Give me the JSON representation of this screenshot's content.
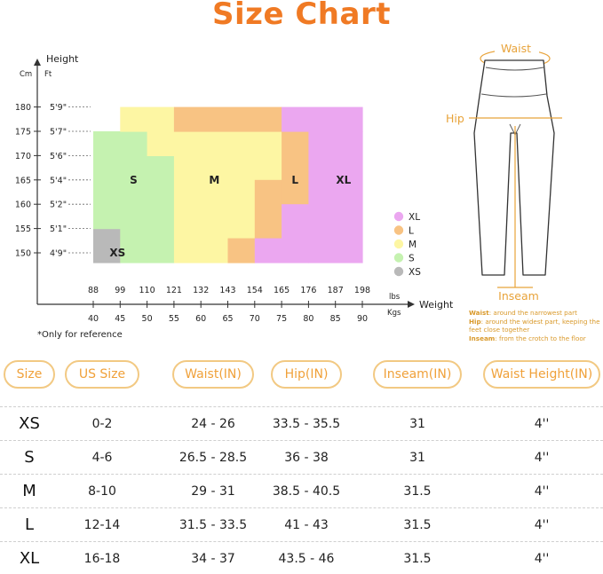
{
  "title": "Size Chart",
  "chart_data": {
    "type": "heatmap",
    "y_axis": {
      "title": "Height",
      "units": [
        "Cm",
        "Ft"
      ],
      "ticks_cm": [
        180,
        175,
        170,
        165,
        160,
        155,
        150
      ],
      "ticks_ft": [
        "5'9\"",
        "5'7\"",
        "5'6\"",
        "5'4\"",
        "5'2\"",
        "5'1\"",
        "4'9\""
      ]
    },
    "x_axis": {
      "title": "Weight",
      "units": [
        "lbs",
        "Kgs"
      ],
      "ticks_lbs": [
        88,
        99,
        110,
        121,
        132,
        143,
        154,
        165,
        176,
        187,
        198
      ],
      "ticks_kgs": [
        40,
        45,
        50,
        55,
        60,
        65,
        70,
        75,
        80,
        85,
        90
      ]
    },
    "sizes": [
      {
        "name": "XS",
        "color": "#b9b9b9"
      },
      {
        "name": "S",
        "color": "#c5f2b0"
      },
      {
        "name": "M",
        "color": "#fdf6a3"
      },
      {
        "name": "L",
        "color": "#f8c383"
      },
      {
        "name": "XL",
        "color": "#eba7f0"
      }
    ],
    "legend": [
      "XL",
      "L",
      "M",
      "S",
      "XS"
    ],
    "legend_colors": {
      "XL": "#eba7f0",
      "L": "#f8c383",
      "M": "#fdf6a3",
      "S": "#c5f2b0",
      "XS": "#b9b9b9"
    },
    "regions": [
      {
        "size": "XS",
        "x0": 40,
        "x1": 45,
        "y0": 148,
        "y1": 155
      },
      {
        "size": "S",
        "x0": 40,
        "x1": 50,
        "y0": 155,
        "y1": 175
      },
      {
        "size": "S",
        "x0": 45,
        "x1": 50,
        "y0": 148,
        "y1": 155
      },
      {
        "size": "S",
        "x0": 50,
        "x1": 55,
        "y0": 148,
        "y1": 170
      },
      {
        "size": "M",
        "x0": 45,
        "x1": 55,
        "y0": 175,
        "y1": 180
      },
      {
        "size": "M",
        "x0": 50,
        "x1": 55,
        "y0": 170,
        "y1": 175
      },
      {
        "size": "M",
        "x0": 55,
        "x1": 70,
        "y0": 148,
        "y1": 175
      },
      {
        "size": "M",
        "x0": 70,
        "x1": 75,
        "y0": 165,
        "y1": 175
      },
      {
        "size": "L",
        "x0": 55,
        "x1": 75,
        "y0": 175,
        "y1": 180
      },
      {
        "size": "L",
        "x0": 70,
        "x1": 75,
        "y0": 153,
        "y1": 165
      },
      {
        "size": "L",
        "x0": 65,
        "x1": 70,
        "y0": 148,
        "y1": 153
      },
      {
        "size": "L",
        "x0": 75,
        "x1": 80,
        "y0": 160,
        "y1": 175
      },
      {
        "size": "XL",
        "x0": 75,
        "x1": 90,
        "y0": 175,
        "y1": 180
      },
      {
        "size": "XL",
        "x0": 80,
        "x1": 90,
        "y0": 148,
        "y1": 175
      },
      {
        "size": "XL",
        "x0": 70,
        "x1": 80,
        "y0": 148,
        "y1": 153
      },
      {
        "size": "XL",
        "x0": 75,
        "x1": 80,
        "y0": 153,
        "y1": 160
      }
    ],
    "region_labels": [
      {
        "text": "S",
        "x": 47.5,
        "y": 165
      },
      {
        "text": "M",
        "x": 62.5,
        "y": 165
      },
      {
        "text": "L",
        "x": 77.5,
        "y": 165
      },
      {
        "text": "XL",
        "x": 86.5,
        "y": 165
      },
      {
        "text": "XS",
        "x": 44.5,
        "y": 150
      }
    ]
  },
  "note": "*Only for reference",
  "diagram": {
    "waist": "Waist",
    "hip": "Hip",
    "inseam": "Inseam",
    "notes": [
      {
        "term": "Waist",
        "text": ": around the narrowest part"
      },
      {
        "term": "Hip",
        "text": ": around the widest part, keeping the feet close together"
      },
      {
        "term": "Inseam",
        "text": ": from the crotch to the floor"
      }
    ]
  },
  "table": {
    "headers": [
      "Size",
      "US Size",
      "Waist(IN)",
      "Hip(IN)",
      "Inseam(IN)",
      "Waist Height(IN)"
    ],
    "rows": [
      [
        "XS",
        "0-2",
        "24 - 26",
        "33.5 - 35.5",
        "31",
        "4''"
      ],
      [
        "S",
        "4-6",
        "26.5 - 28.5",
        "36 - 38",
        "31",
        "4''"
      ],
      [
        "M",
        "8-10",
        "29 - 31",
        "38.5 - 40.5",
        "31.5",
        "4''"
      ],
      [
        "L",
        "12-14",
        "31.5 - 33.5",
        "41 - 43",
        "31.5",
        "4''"
      ],
      [
        "XL",
        "16-18",
        "34 - 37",
        "43.5 - 46",
        "31.5",
        "4''"
      ]
    ]
  }
}
